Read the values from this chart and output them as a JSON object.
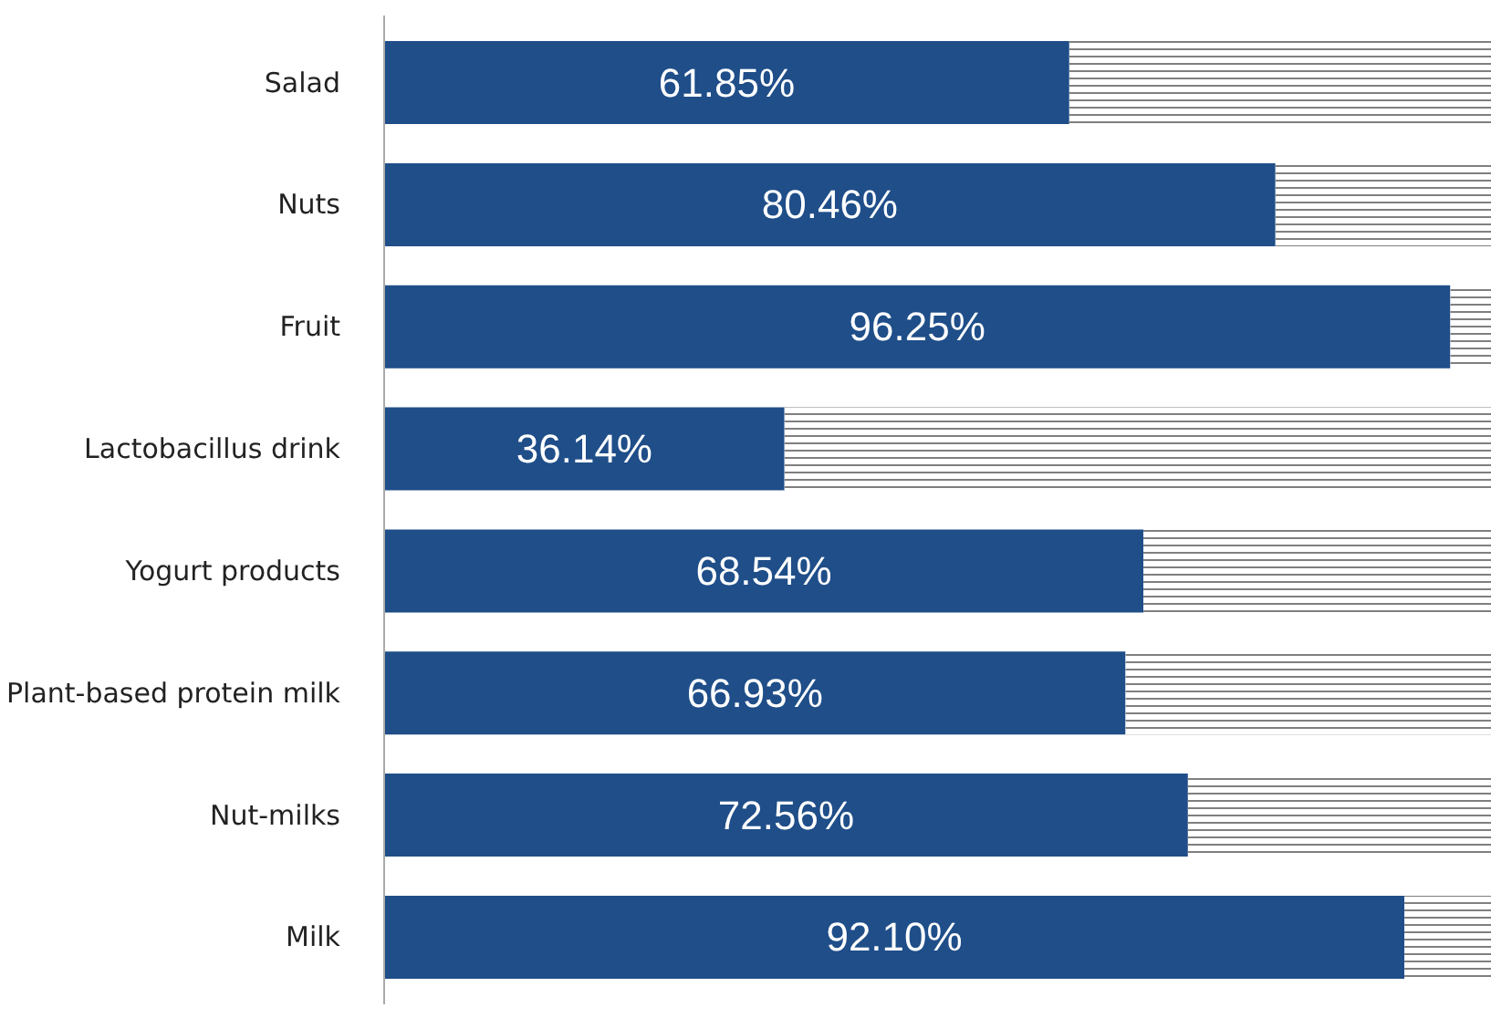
{
  "chart_data": {
    "type": "bar",
    "orientation": "horizontal",
    "stacked": true,
    "categories": [
      "Salad",
      "Nuts",
      "Fruit",
      "Lactobacillus drink",
      "Yogurt products",
      "Plant-based protein milk",
      "Nut-milks",
      "Milk"
    ],
    "xlim": [
      0,
      100
    ],
    "tick_labels": "y",
    "grid": false,
    "series": [
      {
        "color": "#1f4e89",
        "values": [
          61.85,
          80.46,
          96.25,
          36.14,
          68.54,
          66.93,
          72.56,
          92.1
        ],
        "value_labels": [
          "61.85%",
          "80.46%",
          "96.25%",
          "36.14%",
          "68.54%",
          "66.93%",
          "72.56%",
          "92.10%"
        ]
      },
      {
        "color": "#7f7f7f",
        "values": [
          38.15,
          19.54,
          3.75,
          63.86,
          31.46,
          33.07,
          27.44,
          7.9
        ]
      }
    ]
  }
}
